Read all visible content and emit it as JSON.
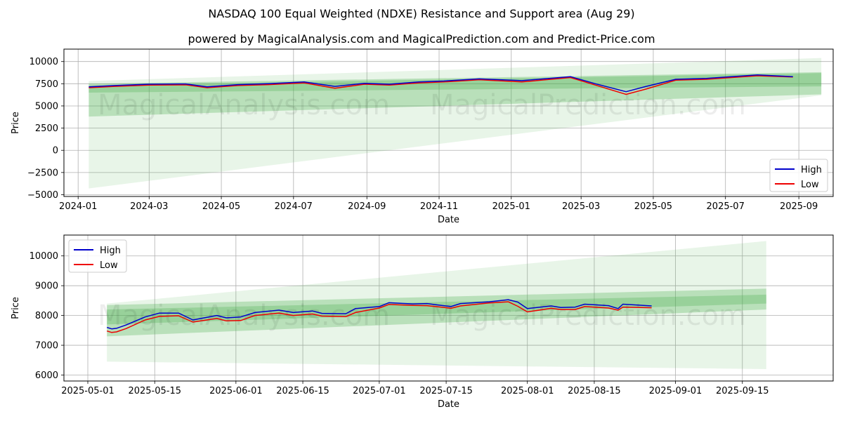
{
  "title": "NASDAQ 100 Equal Weighted (NDXE) Resistance and Support area (Aug 29)",
  "subtitle": "powered by MagicalAnalysis.com and MagicalPrediction.com and Predict-Price.com",
  "watermarks": [
    "MagicalAnalysis.com",
    "MagicalPrediction.com"
  ],
  "colors": {
    "high": "#0000cc",
    "low": "#ee0000",
    "band": "#4caf50",
    "grid": "#b0b0b0"
  },
  "chart_data": [
    {
      "type": "line",
      "xlabel": "Date",
      "ylabel": "Price",
      "xlim": [
        "2023-12-20",
        "2025-09-30"
      ],
      "ylim": [
        -5200,
        11400
      ],
      "x_ticks": [
        "2024-01",
        "2024-03",
        "2024-05",
        "2024-07",
        "2024-09",
        "2024-11",
        "2025-01",
        "2025-03",
        "2025-05",
        "2025-07",
        "2025-09"
      ],
      "y_ticks": [
        -5000,
        -2500,
        0,
        2500,
        5000,
        7500,
        10000
      ],
      "grid": true,
      "legend": "lower right",
      "series": [
        {
          "name": "High",
          "x": [
            "2024-01-10",
            "2024-02-01",
            "2024-03-01",
            "2024-04-01",
            "2024-04-19",
            "2024-05-15",
            "2024-06-10",
            "2024-07-10",
            "2024-08-05",
            "2024-08-30",
            "2024-09-20",
            "2024-10-15",
            "2024-11-05",
            "2024-12-05",
            "2025-01-10",
            "2025-02-20",
            "2025-03-13",
            "2025-04-08",
            "2025-04-25",
            "2025-05-20",
            "2025-06-15",
            "2025-07-28",
            "2025-08-27"
          ],
          "y": [
            7150,
            7300,
            7450,
            7480,
            7150,
            7400,
            7500,
            7700,
            7200,
            7550,
            7450,
            7700,
            7800,
            8050,
            7850,
            8300,
            7500,
            6600,
            7200,
            8000,
            8100,
            8500,
            8300
          ]
        },
        {
          "name": "Low",
          "x": [
            "2024-01-10",
            "2024-02-01",
            "2024-03-01",
            "2024-04-01",
            "2024-04-19",
            "2024-05-15",
            "2024-06-10",
            "2024-07-10",
            "2024-08-05",
            "2024-08-30",
            "2024-09-20",
            "2024-10-15",
            "2024-11-05",
            "2024-12-05",
            "2025-01-10",
            "2025-02-20",
            "2025-03-13",
            "2025-04-08",
            "2025-04-25",
            "2025-05-20",
            "2025-06-15",
            "2025-07-28",
            "2025-08-27"
          ],
          "y": [
            7050,
            7200,
            7350,
            7380,
            7050,
            7300,
            7400,
            7600,
            7000,
            7450,
            7350,
            7600,
            7700,
            7950,
            7700,
            8200,
            7350,
            6300,
            6900,
            7900,
            8000,
            8400,
            8250
          ]
        }
      ],
      "bands": [
        {
          "x": [
            "2024-01-10",
            "2025-09-20"
          ],
          "upper": [
            7800,
            10400
          ],
          "lower": [
            -4300,
            6200
          ]
        },
        {
          "x": [
            "2024-01-10",
            "2025-09-20"
          ],
          "upper": [
            7500,
            8800
          ],
          "lower": [
            3800,
            6300
          ]
        },
        {
          "x": [
            "2024-01-10",
            "2025-09-20"
          ],
          "upper": [
            7300,
            8700
          ],
          "lower": [
            6500,
            7200
          ]
        }
      ]
    },
    {
      "type": "line",
      "xlabel": "Date",
      "ylabel": "Price",
      "xlim": [
        "2025-04-26",
        "2025-10-04"
      ],
      "ylim": [
        5800,
        10700
      ],
      "x_ticks": [
        "2025-05-01",
        "2025-05-15",
        "2025-06-01",
        "2025-06-15",
        "2025-07-01",
        "2025-07-15",
        "2025-08-01",
        "2025-08-15",
        "2025-09-01",
        "2025-09-15"
      ],
      "y_ticks": [
        6000,
        7000,
        8000,
        9000,
        10000
      ],
      "grid": true,
      "legend": "upper left",
      "series": [
        {
          "name": "High",
          "x": [
            "2025-05-05",
            "2025-05-06",
            "2025-05-07",
            "2025-05-09",
            "2025-05-13",
            "2025-05-16",
            "2025-05-20",
            "2025-05-23",
            "2025-05-28",
            "2025-05-30",
            "2025-06-02",
            "2025-06-05",
            "2025-06-10",
            "2025-06-13",
            "2025-06-17",
            "2025-06-19",
            "2025-06-24",
            "2025-06-26",
            "2025-07-01",
            "2025-07-03",
            "2025-07-08",
            "2025-07-11",
            "2025-07-14",
            "2025-07-16",
            "2025-07-18",
            "2025-07-24",
            "2025-07-28",
            "2025-07-30",
            "2025-08-01",
            "2025-08-06",
            "2025-08-08",
            "2025-08-11",
            "2025-08-13",
            "2025-08-18",
            "2025-08-20",
            "2025-08-21",
            "2025-08-27"
          ],
          "y": [
            7600,
            7550,
            7570,
            7680,
            7950,
            8080,
            8080,
            7850,
            8000,
            7920,
            7950,
            8100,
            8180,
            8100,
            8150,
            8070,
            8060,
            8230,
            8300,
            8430,
            8390,
            8400,
            8340,
            8300,
            8400,
            8460,
            8530,
            8450,
            8230,
            8320,
            8270,
            8280,
            8380,
            8330,
            8230,
            8380,
            8320
          ]
        },
        {
          "name": "Low",
          "x": [
            "2025-05-05",
            "2025-05-06",
            "2025-05-07",
            "2025-05-09",
            "2025-05-13",
            "2025-05-16",
            "2025-05-20",
            "2025-05-23",
            "2025-05-28",
            "2025-05-30",
            "2025-06-02",
            "2025-06-05",
            "2025-06-10",
            "2025-06-13",
            "2025-06-17",
            "2025-06-19",
            "2025-06-24",
            "2025-06-26",
            "2025-07-01",
            "2025-07-03",
            "2025-07-08",
            "2025-07-11",
            "2025-07-14",
            "2025-07-16",
            "2025-07-18",
            "2025-07-24",
            "2025-07-28",
            "2025-07-30",
            "2025-08-01",
            "2025-08-06",
            "2025-08-08",
            "2025-08-11",
            "2025-08-13",
            "2025-08-18",
            "2025-08-20",
            "2025-08-21",
            "2025-08-27"
          ],
          "y": [
            7480,
            7430,
            7450,
            7560,
            7850,
            7970,
            7990,
            7780,
            7900,
            7820,
            7830,
            8000,
            8080,
            8000,
            8050,
            7980,
            7960,
            8100,
            8250,
            8370,
            8340,
            8330,
            8280,
            8240,
            8320,
            8420,
            8460,
            8310,
            8120,
            8240,
            8200,
            8200,
            8300,
            8250,
            8180,
            8280,
            8260
          ]
        }
      ],
      "bands": [
        {
          "x": [
            "2025-05-05",
            "2025-09-20"
          ],
          "upper": [
            8400,
            10500
          ],
          "lower": [
            6450,
            6200
          ]
        },
        {
          "x": [
            "2025-05-05",
            "2025-09-20"
          ],
          "upper": [
            8350,
            8900
          ],
          "lower": [
            7300,
            8200
          ]
        },
        {
          "x": [
            "2025-05-05",
            "2025-09-20"
          ],
          "upper": [
            8200,
            8700
          ],
          "lower": [
            7700,
            8400
          ]
        }
      ]
    }
  ]
}
